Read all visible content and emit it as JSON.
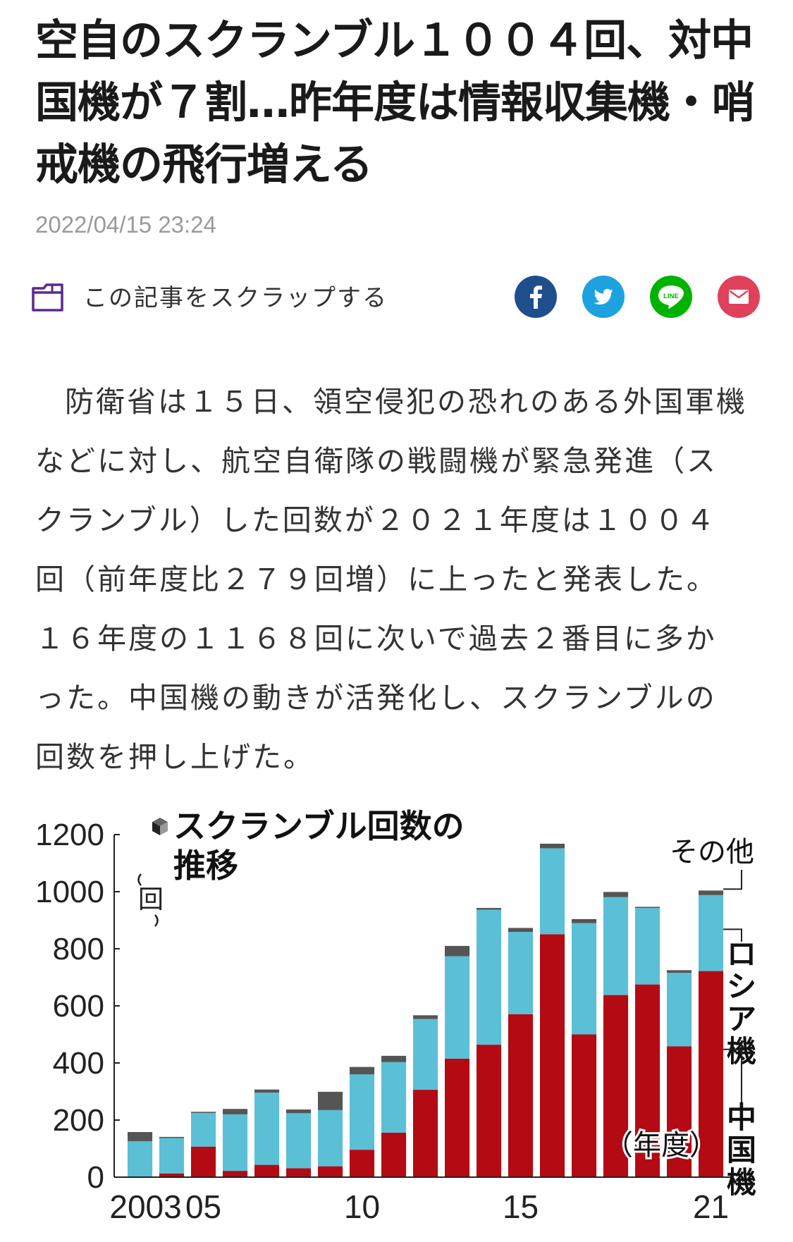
{
  "article": {
    "headline": "空自のスクランブル１００４回、対中国機が７割…昨年度は情報収集機・哨戒機の飛行増える",
    "date": "2022/04/15 23:24",
    "scrap_label": "この記事をスクラップする",
    "body": "防衛省は１５日、領空侵犯の恐れのある外国軍機などに対し、航空自衛隊の戦闘機が緊急発進（スクランブル）した回数が２０２１年度は１００４回（前年度比２７９回増）に上ったと発表した。１６年度の１１６８回に次いで過去２番目に多かった。中国機の動きが活発化し、スクランブルの回数を押し上げた。"
  },
  "share": {
    "facebook": {
      "icon": "facebook-icon",
      "color": "#1e4f8c"
    },
    "twitter": {
      "icon": "twitter-icon",
      "color": "#1da1e0"
    },
    "line": {
      "icon": "line-icon",
      "color": "#00b300",
      "text": "LINE"
    },
    "mail": {
      "icon": "mail-icon",
      "color": "#e0415a"
    }
  },
  "scrap_icon": "folder-scrap-icon",
  "chart_data": {
    "type": "bar",
    "stacked": true,
    "title": "スクランブル回数の推移",
    "ylabel": "回",
    "xlabel": "年度",
    "ylim": [
      0,
      1200
    ],
    "yticks": [
      "0",
      "200",
      "400",
      "600",
      "800",
      "1000",
      "1200"
    ],
    "xtick_labels": [
      "2003",
      "05",
      "10",
      "15",
      "21"
    ],
    "categories": [
      "2003",
      "2004",
      "2005",
      "2006",
      "2007",
      "2008",
      "2009",
      "2010",
      "2011",
      "2012",
      "2013",
      "2014",
      "2015",
      "2016",
      "2017",
      "2018",
      "2019",
      "2020",
      "2021"
    ],
    "series": [
      {
        "name": "中国機",
        "color": "#b40a14",
        "values": [
          2,
          13,
          107,
          22,
          43,
          31,
          38,
          96,
          156,
          306,
          415,
          464,
          571,
          851,
          500,
          638,
          675,
          458,
          722
        ]
      },
      {
        "name": "ロシア機",
        "color": "#5bbfd6",
        "values": [
          124,
          124,
          118,
          198,
          253,
          193,
          197,
          264,
          247,
          248,
          359,
          473,
          288,
          301,
          390,
          343,
          268,
          258,
          266
        ]
      },
      {
        "name": "その他",
        "color": "#555555",
        "values": [
          32,
          4,
          4,
          19,
          11,
          13,
          64,
          26,
          22,
          13,
          36,
          6,
          14,
          16,
          14,
          18,
          4,
          9,
          16
        ]
      }
    ],
    "legend_placement": "right"
  }
}
